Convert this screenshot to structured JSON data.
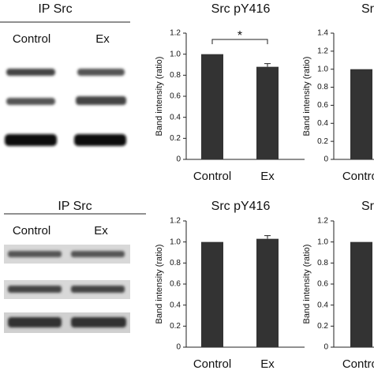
{
  "blots": [
    {
      "title": "IP Src",
      "lanes": [
        "Control",
        "Ex"
      ]
    },
    {
      "title": "IP Src",
      "lanes": [
        "Control",
        "Ex"
      ]
    }
  ],
  "chart_data": [
    {
      "type": "bar",
      "title": "Src pY416",
      "y_label": "Band intensity (ratio)",
      "categories": [
        "Control",
        "Ex"
      ],
      "values": [
        1.0,
        0.88
      ],
      "errors": [
        null,
        0.03
      ],
      "color": "#333333",
      "annotation": "*",
      "ylim": [
        0,
        1.2
      ],
      "yticks": [
        0,
        0.2,
        0.4,
        0.6,
        0.8,
        {
          "value": 1,
          "label": "1.0"
        },
        1.2
      ]
    },
    {
      "type": "bar",
      "title": "Src",
      "y_label": "Band intensity (ratio)",
      "categories": [
        "Control"
      ],
      "values": [
        1.0
      ],
      "color": "#333333",
      "ylim": [
        0,
        1.4
      ],
      "yticks": [
        0,
        0.2,
        0.4,
        0.6,
        0.8,
        {
          "value": 1,
          "label": "1.0"
        },
        1.2,
        1.4
      ]
    },
    {
      "type": "bar",
      "title": "Src pY416",
      "y_label": "Band intensity (ratio)",
      "categories": [
        "Control",
        "Ex"
      ],
      "values": [
        1.0,
        1.03
      ],
      "errors": [
        null,
        0.03
      ],
      "color": "#333333",
      "ylim": [
        0,
        1.2
      ],
      "yticks": [
        0,
        0.2,
        0.4,
        0.6,
        0.8,
        {
          "value": 1,
          "label": "1.0"
        },
        1.2
      ]
    },
    {
      "type": "bar",
      "title": "Src",
      "y_label": "Band intensity (ratio)",
      "categories": [
        "Control"
      ],
      "values": [
        1.0
      ],
      "color": "#333333",
      "ylim": [
        0,
        1.2
      ],
      "yticks": [
        0,
        0.2,
        0.4,
        0.6,
        0.8,
        {
          "value": 1,
          "label": "1.0"
        },
        1.2
      ]
    }
  ]
}
